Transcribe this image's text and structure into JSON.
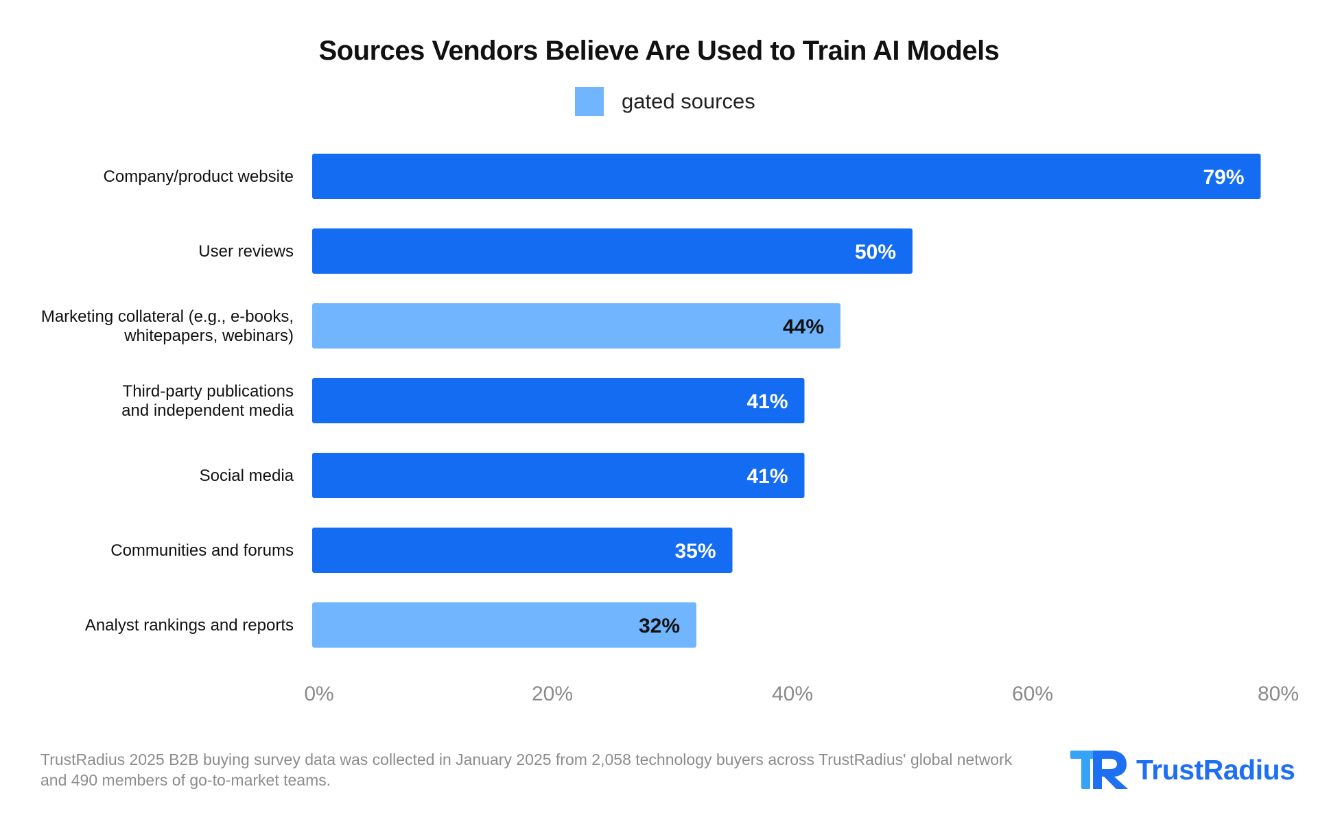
{
  "title": "Sources Vendors Believe Are Used to Train AI Models",
  "legend": {
    "label": "gated sources",
    "color": "#70b5fd"
  },
  "colors": {
    "standard": "#136cf2",
    "gated": "#70b5fd",
    "value_on_standard": "#ffffff",
    "value_on_gated": "#111111"
  },
  "chart_data": {
    "type": "bar",
    "orientation": "horizontal",
    "title": "Sources Vendors Believe Are Used to Train AI Models",
    "xlabel": "",
    "ylabel": "",
    "xlim": [
      0,
      80
    ],
    "ticks": [
      0,
      20,
      40,
      60,
      80
    ],
    "tick_labels": [
      "0%",
      "20%",
      "40%",
      "60%",
      "80%"
    ],
    "categories": [
      [
        "Company/product website"
      ],
      [
        "User reviews"
      ],
      [
        "Marketing collateral (e.g., e-books,",
        "whitepapers, webinars)"
      ],
      [
        "Third-party publications",
        "and independent media"
      ],
      [
        "Social media"
      ],
      [
        "Communities and forums"
      ],
      [
        "Analyst rankings and reports"
      ]
    ],
    "values": [
      79,
      50,
      44,
      41,
      41,
      35,
      32
    ],
    "value_labels": [
      "79%",
      "50%",
      "44%",
      "41%",
      "41%",
      "35%",
      "32%"
    ],
    "gated": [
      false,
      false,
      true,
      false,
      false,
      false,
      true
    ],
    "legend": [
      "gated sources"
    ],
    "grid": false
  },
  "footnote": {
    "line1": "TrustRadius 2025 B2B buying survey data was collected in January 2025 from 2,058 technology buyers across TrustRadius' global network",
    "line2": "and 490 members of go-to-market teams."
  },
  "logo": {
    "text": "TrustRadius",
    "icon": "trustradius-logo-icon",
    "color": "#1f6ff2"
  }
}
